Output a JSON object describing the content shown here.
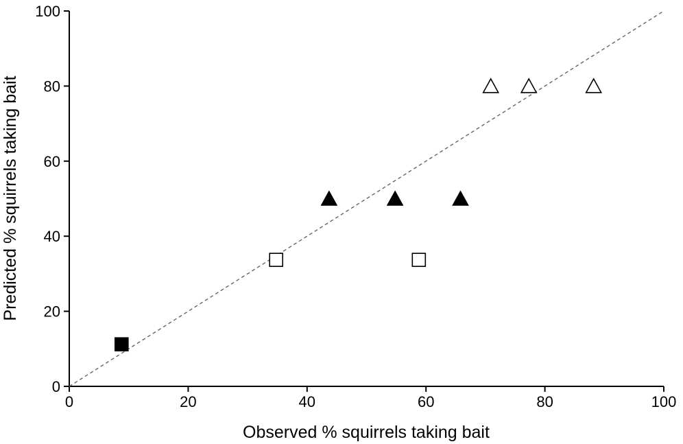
{
  "chart_data": {
    "type": "scatter",
    "title": "",
    "xlabel": "Observed % squirrels taking bait",
    "ylabel": "Predicted % squirrels taking bait",
    "xlim": [
      0,
      100
    ],
    "ylim": [
      0,
      100
    ],
    "xticks": [
      0,
      20,
      40,
      60,
      80,
      100
    ],
    "yticks": [
      0,
      20,
      40,
      60,
      80,
      100
    ],
    "xtick_labels": [
      "0",
      "20",
      "40",
      "60",
      "80",
      "100"
    ],
    "ytick_labels": [
      "0",
      "20",
      "40",
      "60",
      "80",
      "100"
    ],
    "grid": false,
    "legend": "none",
    "reference_line": {
      "style": "dashed",
      "from": [
        0,
        0
      ],
      "to": [
        100,
        100
      ],
      "color": "#666666"
    },
    "series": [
      {
        "marker": "square",
        "fill": "black",
        "points": [
          {
            "x": 8.8,
            "y": 11.2
          }
        ]
      },
      {
        "marker": "square",
        "fill": "white",
        "points": [
          {
            "x": 34.8,
            "y": 33.7
          },
          {
            "x": 58.8,
            "y": 33.7
          }
        ]
      },
      {
        "marker": "triangle",
        "fill": "black",
        "points": [
          {
            "x": 43.7,
            "y": 50.0
          },
          {
            "x": 54.8,
            "y": 50.0
          },
          {
            "x": 65.8,
            "y": 50.0
          }
        ]
      },
      {
        "marker": "triangle",
        "fill": "white",
        "points": [
          {
            "x": 70.9,
            "y": 80.0
          },
          {
            "x": 77.3,
            "y": 80.0
          },
          {
            "x": 88.2,
            "y": 80.0
          }
        ]
      }
    ]
  }
}
